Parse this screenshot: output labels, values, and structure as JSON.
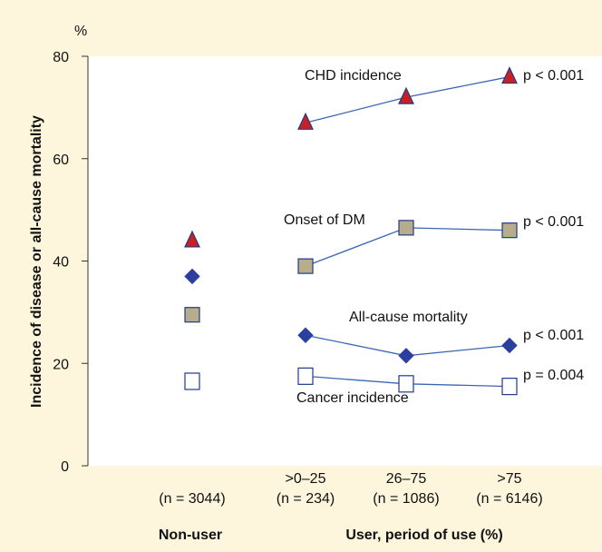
{
  "chart_data": {
    "type": "scatter",
    "unit": "%",
    "ylabel": "Incidence of disease or all-cause mortality",
    "ylim": [
      0,
      80
    ],
    "yticks": [
      0,
      20,
      40,
      60,
      80
    ],
    "categories": [
      {
        "label": "",
        "n": "(n = 3044)"
      },
      {
        "label": ">0–25",
        "n": "(n = 234)"
      },
      {
        "label": "26–75",
        "n": "(n = 1086)"
      },
      {
        "label": ">75",
        "n": "(n = 6146)"
      }
    ],
    "groups": [
      "Non-user",
      "User, period of use (%)"
    ],
    "series": [
      {
        "name": "CHD incidence",
        "marker": "triangle",
        "values": [
          44,
          67,
          72,
          76
        ],
        "p": "p < 0.001",
        "color": "#cc1f1f",
        "stroke": "#1e3a8c"
      },
      {
        "name": "Onset of DM",
        "marker": "square",
        "values": [
          29.5,
          39,
          46.5,
          46
        ],
        "p": "p < 0.001",
        "color": "#b7ad8a",
        "stroke": "#1e3a8c"
      },
      {
        "name": "All-cause mortality",
        "marker": "diamond",
        "values": [
          37,
          25.5,
          21.5,
          23.5
        ],
        "p": "p < 0.001",
        "color": "#2c3f9e",
        "stroke": "#2c3f9e"
      },
      {
        "name": "Cancer incidence",
        "marker": "open-square",
        "values": [
          16.5,
          17.5,
          16,
          15.5
        ],
        "p": "p = 0.004",
        "color": "#ffffff",
        "stroke": "#1e3a8c"
      }
    ],
    "line_color": "#3a67b4",
    "background": "#fdf6dc",
    "plot_background": "#ffffff"
  }
}
